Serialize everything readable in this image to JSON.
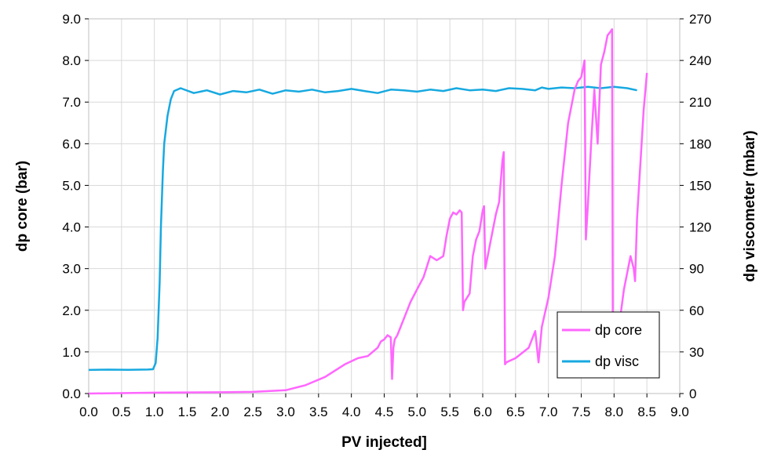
{
  "chart_data": {
    "type": "line",
    "title": "",
    "xlabel": "PV injected]",
    "ylabel": "dp core (bar)",
    "y2label": "dp viscometer (mbar)",
    "xlim": [
      0,
      9
    ],
    "ylim": [
      0,
      9
    ],
    "y2lim": [
      0,
      270
    ],
    "xticks": [
      "0.0",
      "0.5",
      "1.0",
      "1.5",
      "2.0",
      "2.5",
      "3.0",
      "3.5",
      "4.0",
      "4.5",
      "5.0",
      "5.5",
      "6.0",
      "6.5",
      "7.0",
      "7.5",
      "8.0",
      "8.5",
      "9.0"
    ],
    "yticks": [
      "0.0",
      "1.0",
      "2.0",
      "3.0",
      "4.0",
      "5.0",
      "6.0",
      "7.0",
      "8.0",
      "9.0"
    ],
    "y2ticks": [
      "0",
      "30",
      "60",
      "90",
      "120",
      "150",
      "180",
      "210",
      "240",
      "270"
    ],
    "grid": true,
    "legend": {
      "position": "bottom-right"
    },
    "series": [
      {
        "name": "dp core",
        "axis": "left",
        "color": "#ff66ff",
        "x": [
          0.0,
          1.0,
          2.0,
          2.5,
          3.0,
          3.3,
          3.6,
          3.9,
          4.1,
          4.25,
          4.4,
          4.45,
          4.5,
          4.55,
          4.6,
          4.62,
          4.64,
          4.66,
          4.7,
          4.8,
          4.9,
          5.0,
          5.1,
          5.2,
          5.3,
          5.4,
          5.45,
          5.5,
          5.55,
          5.6,
          5.65,
          5.68,
          5.7,
          5.72,
          5.8,
          5.85,
          5.9,
          5.95,
          6.0,
          6.02,
          6.04,
          6.1,
          6.2,
          6.25,
          6.3,
          6.32,
          6.34,
          6.36,
          6.5,
          6.7,
          6.8,
          6.85,
          6.9,
          7.0,
          7.1,
          7.2,
          7.3,
          7.4,
          7.45,
          7.5,
          7.55,
          7.57,
          7.6,
          7.65,
          7.7,
          7.75,
          7.8,
          7.85,
          7.9,
          7.95,
          7.97,
          7.98,
          8.0,
          8.02,
          8.1,
          8.15,
          8.2,
          8.25,
          8.3,
          8.32,
          8.35,
          8.4,
          8.45,
          8.5
        ],
        "y": [
          0.0,
          0.02,
          0.03,
          0.04,
          0.08,
          0.2,
          0.4,
          0.7,
          0.85,
          0.9,
          1.1,
          1.25,
          1.3,
          1.4,
          1.35,
          0.35,
          1.1,
          1.3,
          1.4,
          1.8,
          2.2,
          2.5,
          2.8,
          3.3,
          3.2,
          3.3,
          3.8,
          4.2,
          4.35,
          4.3,
          4.4,
          4.35,
          2.0,
          2.2,
          2.4,
          3.3,
          3.7,
          3.9,
          4.4,
          4.5,
          3.0,
          3.5,
          4.3,
          4.6,
          5.6,
          5.8,
          0.7,
          0.75,
          0.85,
          1.1,
          1.5,
          0.75,
          1.6,
          2.3,
          3.3,
          5.0,
          6.5,
          7.3,
          7.5,
          7.6,
          8.0,
          3.7,
          4.5,
          6.0,
          7.3,
          6.0,
          7.9,
          8.2,
          8.6,
          8.7,
          8.75,
          1.7,
          1.8,
          1.8,
          1.9,
          2.5,
          2.9,
          3.3,
          3.0,
          2.7,
          4.2,
          5.5,
          6.8,
          7.7
        ]
      },
      {
        "name": "dp visc",
        "axis": "right",
        "color": "#17a9e0",
        "x": [
          0.0,
          0.3,
          0.6,
          0.9,
          0.98,
          1.02,
          1.05,
          1.08,
          1.1,
          1.13,
          1.15,
          1.2,
          1.25,
          1.3,
          1.4,
          1.6,
          1.8,
          2.0,
          2.2,
          2.4,
          2.6,
          2.8,
          3.0,
          3.2,
          3.4,
          3.6,
          3.8,
          4.0,
          4.2,
          4.4,
          4.6,
          4.8,
          5.0,
          5.2,
          5.4,
          5.6,
          5.8,
          6.0,
          6.2,
          6.4,
          6.6,
          6.8,
          6.9,
          7.0,
          7.2,
          7.4,
          7.6,
          7.8,
          8.0,
          8.2,
          8.35
        ],
        "y": [
          17.0,
          17.2,
          17.1,
          17.3,
          17.5,
          22.0,
          40.0,
          80.0,
          120.0,
          160.0,
          180.0,
          200.0,
          212.0,
          218.0,
          220.0,
          216.5,
          218.5,
          215.5,
          218.0,
          217.0,
          219.0,
          216.0,
          218.5,
          217.5,
          219.0,
          217.0,
          218.0,
          219.5,
          218.0,
          216.5,
          219.0,
          218.5,
          217.5,
          219.0,
          218.0,
          220.0,
          218.5,
          219.0,
          218.0,
          220.0,
          219.5,
          218.5,
          220.5,
          219.5,
          220.5,
          220.0,
          221.0,
          220.0,
          221.0,
          220.0,
          218.5
        ]
      }
    ]
  }
}
